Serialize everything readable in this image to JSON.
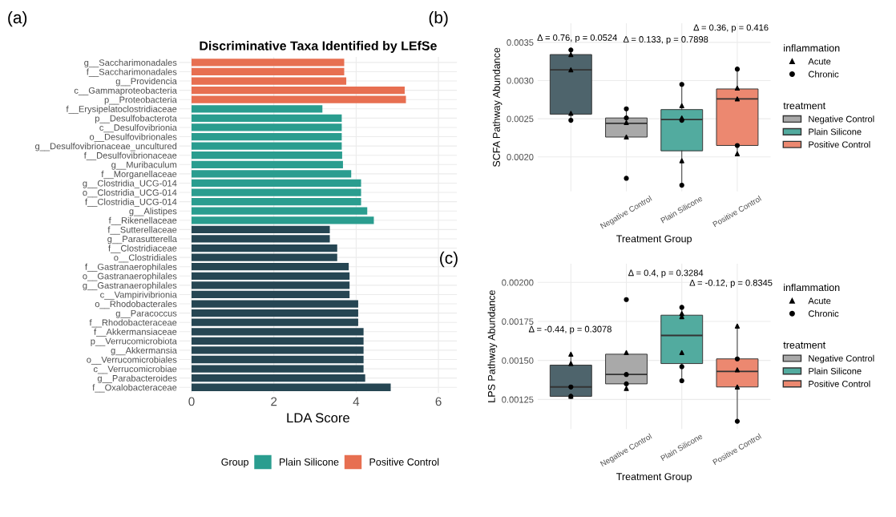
{
  "chart_data": [
    {
      "type": "bar",
      "orientation": "horizontal",
      "title": "Discriminative Taxa Identified by LEfSe",
      "xlabel": "LDA Score",
      "categories": [
        "g__Saccharimonadales",
        "f__Saccharimonadales",
        "g__Providencia",
        "c__Gammaproteobacteria",
        "p__Proteobacteria",
        "f__Erysipelatoclostridiaceae",
        "p__Desulfobacterota",
        "c__Desulfovibrionia",
        "o__Desulfovibrionales",
        "g__Desulfovibrionaceae_uncultured",
        "f__Desulfovibrionaceae",
        "g__Muribaculum",
        "f__Morganellaceae",
        "g__Clostridia_UCG-014",
        "o__Clostridia_UCG-014",
        "f__Clostridia_UCG-014",
        "g__Alistipes",
        "f__Rikenellaceae",
        "f__Sutterellaceae",
        "g__Parasutterella",
        "f__Clostridiaceae",
        "o__Clostridiales",
        "f__Gastranaerophilales",
        "o__Gastranaerophilales",
        "g__Gastranaerophilales",
        "c__Vampirivibrionia",
        "o__Rhodobacterales",
        "g__Paracoccus",
        "f__Rhodobacteraceae",
        "f__Akkermansiaceae",
        "p__Verrucomicrobiota",
        "g__Akkermansia",
        "o__Verrucomicrobiales",
        "c__Verrucomicrobiae",
        "g__Parabacteroides",
        "f__Oxalobacteraceae"
      ],
      "series": [
        {
          "color": "#264653",
          "values": [
            null,
            null,
            null,
            null,
            null,
            null,
            null,
            null,
            null,
            null,
            null,
            null,
            null,
            null,
            null,
            null,
            null,
            null,
            3.36,
            3.36,
            3.54,
            3.54,
            3.82,
            3.84,
            3.84,
            3.84,
            4.05,
            4.05,
            4.05,
            4.18,
            4.18,
            4.18,
            4.18,
            4.18,
            4.22,
            4.84
          ]
        },
        {
          "name": "Plain Silicone",
          "color": "#2a9d8f",
          "values": [
            null,
            null,
            null,
            null,
            null,
            3.18,
            3.65,
            3.65,
            3.65,
            3.65,
            3.66,
            3.68,
            3.88,
            4.12,
            4.12,
            4.12,
            4.27,
            4.43,
            null,
            null,
            null,
            null,
            null,
            null,
            null,
            null,
            null,
            null,
            null,
            null,
            null,
            null,
            null,
            null,
            null,
            null
          ]
        },
        {
          "name": "Positive Control",
          "color": "#e76f51",
          "values": [
            3.71,
            3.71,
            3.76,
            5.18,
            5.21,
            null,
            null,
            null,
            null,
            null,
            null,
            null,
            null,
            null,
            null,
            null,
            null,
            null,
            null,
            null,
            null,
            null,
            null,
            null,
            null,
            null,
            null,
            null,
            null,
            null,
            null,
            null,
            null,
            null,
            null,
            null
          ]
        }
      ],
      "xlim": [
        -0.3,
        6.45
      ],
      "xticks": [
        0,
        2,
        4,
        6
      ],
      "grid": true,
      "legend": "bottom",
      "legend_title": "Group",
      "annotations": [
        "(a)"
      ]
    },
    {
      "type": "box",
      "xlabel": "Treatment Group",
      "ylabel": "SCFA Pathway Abundance",
      "categories": [
        null,
        "Negative Control",
        "Plain Silicone",
        "Positive Control"
      ],
      "series": [
        {
          "color": "#4e646c",
          "boxes": [
            {
              "low": 0.00248,
              "q1": 0.00256,
              "median": 0.00314,
              "q3": 0.00334,
              "high": 0.0034
            },
            null,
            null,
            null
          ]
        },
        {
          "name": "Negative Control",
          "color": "#a9a9a9",
          "boxes": [
            null,
            {
              "low": 0.00226,
              "q1": 0.00226,
              "median": 0.00244,
              "q3": 0.00251,
              "high": 0.00263
            },
            null,
            null
          ]
        },
        {
          "name": "Plain Silicone",
          "color": "#52ab9f",
          "boxes": [
            null,
            null,
            {
              "low": 0.00164,
              "q1": 0.00208,
              "median": 0.00249,
              "q3": 0.00262,
              "high": 0.00295
            },
            null
          ]
        },
        {
          "name": "Positive Control",
          "color": "#ec8870",
          "boxes": [
            null,
            null,
            null,
            {
              "low": 0.00204,
              "q1": 0.00215,
              "median": 0.00276,
              "q3": 0.00289,
              "high": 0.00315
            }
          ]
        },
        {
          "type": "scatter",
          "name": "Acute",
          "marker": "triangle",
          "color": "#000000",
          "x": [
            null,
            null,
            null,
            "Negative Control",
            "Negative Control",
            "Plain Silicone",
            "Plain Silicone",
            "Plain Silicone",
            "Positive Control",
            "Positive Control",
            "Positive Control"
          ],
          "values": [
            0.00334,
            0.00314,
            0.00257,
            0.00245,
            0.00226,
            0.00267,
            0.00251,
            0.00195,
            0.0029,
            0.00276,
            0.00204
          ]
        },
        {
          "type": "scatter",
          "name": "Chronic",
          "marker": "circle",
          "color": "#000000",
          "x": [
            null,
            null,
            "Negative Control",
            "Negative Control",
            "Negative Control",
            "Plain Silicone",
            "Plain Silicone",
            "Plain Silicone",
            "Positive Control",
            "Positive Control"
          ],
          "values": [
            0.0034,
            0.00248,
            0.00251,
            0.00263,
            0.00172,
            0.00295,
            0.00248,
            0.00163,
            0.00315,
            0.00215
          ]
        }
      ],
      "ylim": [
        0.00155,
        0.00375
      ],
      "yticks": [
        {
          "value": 0.002,
          "label": "0.0020"
        },
        {
          "value": 0.0025,
          "label": "0.0025"
        },
        {
          "value": 0.003,
          "label": "0.0030"
        },
        {
          "value": 0.0035,
          "label": "0.0035"
        }
      ],
      "grid": true,
      "legend": "right",
      "legend_title": [
        "inflammation",
        "treatment"
      ],
      "annotations": [
        "(b)",
        "Δ = 0.76, p = 0.0524",
        "Δ = 0.133, p = 0.7898",
        "Δ = 0.36, p = 0.416"
      ]
    },
    {
      "type": "box",
      "xlabel": "Treatment Group",
      "ylabel": "LPS Pathway Abundance",
      "categories": [
        null,
        "Negative Control",
        "Plain Silicone",
        "Positive Control"
      ],
      "series": [
        {
          "color": "#4e646c",
          "boxes": [
            {
              "low": 0.00127,
              "q1": 0.00127,
              "median": 0.00133,
              "q3": 0.00147,
              "high": 0.00154
            },
            null,
            null,
            null
          ]
        },
        {
          "name": "Negative Control",
          "color": "#a9a9a9",
          "boxes": [
            null,
            {
              "low": 0.00132,
              "q1": 0.00135,
              "median": 0.00141,
              "q3": 0.00154,
              "high": 0.00155
            },
            null,
            null
          ]
        },
        {
          "name": "Plain Silicone",
          "color": "#52ab9f",
          "boxes": [
            null,
            null,
            {
              "low": 0.00138,
              "q1": 0.00148,
              "median": 0.00166,
              "q3": 0.00179,
              "high": 0.00184
            },
            null
          ]
        },
        {
          "name": "Positive Control",
          "color": "#ec8870",
          "boxes": [
            null,
            null,
            null,
            {
              "low": 0.00111,
              "q1": 0.00133,
              "median": 0.00143,
              "q3": 0.00151,
              "high": 0.00172
            }
          ]
        },
        {
          "type": "scatter",
          "name": "Acute",
          "marker": "triangle",
          "color": "#000000",
          "x": [
            null,
            null,
            null,
            "Negative Control",
            "Negative Control",
            "Plain Silicone",
            "Plain Silicone",
            "Plain Silicone",
            "Positive Control",
            "Positive Control",
            "Positive Control"
          ],
          "values": [
            0.00154,
            0.00148,
            0.00127,
            0.00155,
            0.00132,
            0.0018,
            0.00178,
            0.00155,
            0.00172,
            0.00144,
            0.00133
          ]
        },
        {
          "type": "scatter",
          "name": "Chronic",
          "marker": "circle",
          "color": "#000000",
          "x": [
            null,
            null,
            "Negative Control",
            "Negative Control",
            "Negative Control",
            "Plain Silicone",
            "Plain Silicone",
            "Plain Silicone",
            "Positive Control",
            "Positive Control"
          ],
          "values": [
            0.00133,
            0.00127,
            0.00141,
            0.00135,
            0.00189,
            0.00184,
            0.00146,
            0.00137,
            0.00151,
            0.00111
          ]
        }
      ],
      "ylim": [
        0.00106,
        0.00212
      ],
      "yticks": [
        {
          "value": 0.00125,
          "label": "0.00125"
        },
        {
          "value": 0.0015,
          "label": "0.00150"
        },
        {
          "value": 0.00175,
          "label": "0.00175"
        },
        {
          "value": 0.002,
          "label": "0.00200"
        }
      ],
      "grid": true,
      "legend": "right",
      "legend_title": [
        "inflammation",
        "treatment"
      ],
      "annotations": [
        "(c)",
        "Δ = -0.44, p = 0.3078",
        "Δ = 0.4, p = 0.3284",
        "Δ = -0.12, p = 0.8345"
      ]
    }
  ]
}
